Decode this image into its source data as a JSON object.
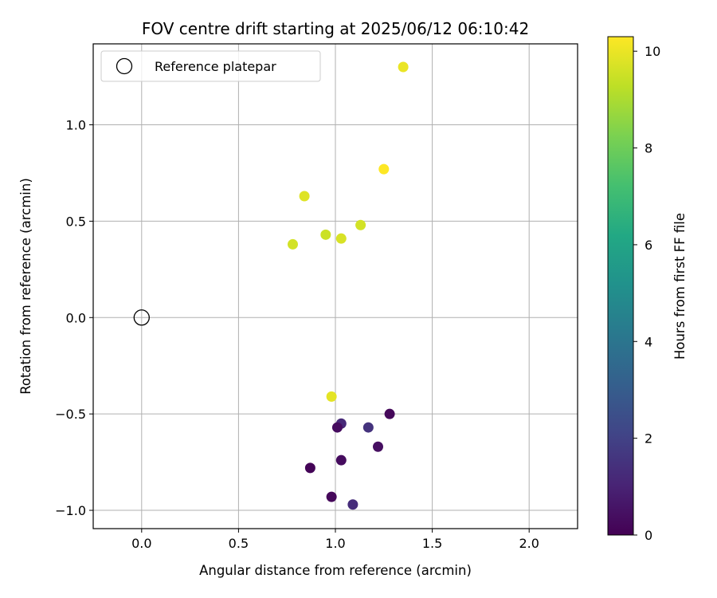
{
  "chart_data": {
    "type": "scatter",
    "title": "FOV centre drift starting at 2025/06/12 06:10:42",
    "xlabel": "Angular distance from reference (arcmin)",
    "ylabel": "Rotation from reference (arcmin)",
    "xlim": [
      -0.25,
      2.25
    ],
    "ylim": [
      -1.095,
      1.42
    ],
    "xticks": [
      0.0,
      0.5,
      1.0,
      1.5,
      2.0
    ],
    "xtick_labels": [
      "0.0",
      "0.5",
      "1.0",
      "1.5",
      "2.0"
    ],
    "yticks": [
      -1.0,
      -0.5,
      0.0,
      0.5,
      1.0
    ],
    "ytick_labels": [
      "−1.0",
      "−0.5",
      "0.0",
      "0.5",
      "1.0"
    ],
    "grid": true,
    "legend": {
      "placement": "top-left",
      "entries": [
        "Reference platepar"
      ]
    },
    "reference_point": {
      "x": 0.0,
      "y": 0.0
    },
    "points": [
      {
        "x": 1.35,
        "y": 1.3,
        "hours": 10.0
      },
      {
        "x": 1.25,
        "y": 0.77,
        "hours": 10.3
      },
      {
        "x": 0.84,
        "y": 0.63,
        "hours": 9.8
      },
      {
        "x": 1.13,
        "y": 0.48,
        "hours": 9.6
      },
      {
        "x": 0.95,
        "y": 0.43,
        "hours": 9.5
      },
      {
        "x": 1.03,
        "y": 0.41,
        "hours": 9.7
      },
      {
        "x": 0.78,
        "y": 0.38,
        "hours": 9.6
      },
      {
        "x": 0.98,
        "y": -0.41,
        "hours": 9.9
      },
      {
        "x": 1.28,
        "y": -0.5,
        "hours": 0.2
      },
      {
        "x": 1.03,
        "y": -0.55,
        "hours": 1.2
      },
      {
        "x": 1.01,
        "y": -0.57,
        "hours": 0.3
      },
      {
        "x": 1.17,
        "y": -0.57,
        "hours": 1.5
      },
      {
        "x": 1.22,
        "y": -0.67,
        "hours": 0.4
      },
      {
        "x": 1.03,
        "y": -0.74,
        "hours": 0.3
      },
      {
        "x": 0.87,
        "y": -0.78,
        "hours": 0.1
      },
      {
        "x": 0.98,
        "y": -0.93,
        "hours": 0.2
      },
      {
        "x": 1.09,
        "y": -0.97,
        "hours": 1.3
      }
    ],
    "colorbar": {
      "label": "Hours from first FF file",
      "colormap": "viridis",
      "range": [
        0,
        10.3
      ],
      "ticks": [
        0,
        2,
        4,
        6,
        8,
        10
      ],
      "tick_labels": [
        "0",
        "2",
        "4",
        "6",
        "8",
        "10"
      ]
    }
  }
}
